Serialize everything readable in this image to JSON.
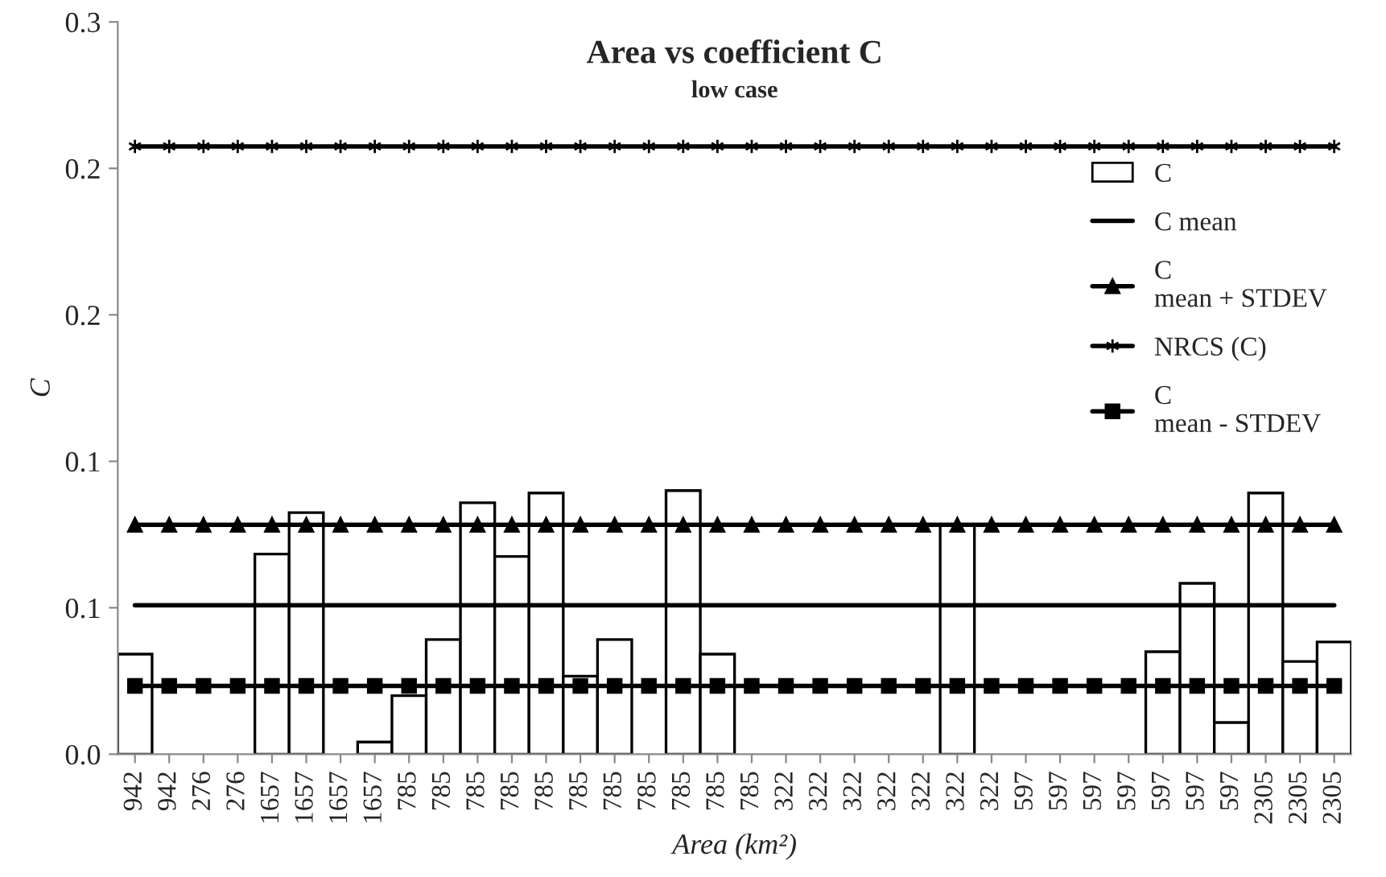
{
  "chart_data": {
    "type": "bar",
    "title": "Area vs coefficient C",
    "subtitle": "low case",
    "xlabel": "Area (km²)",
    "ylabel": "C",
    "categories": [
      "942",
      "942",
      "276",
      "276",
      "1657",
      "1657",
      "1657",
      "1657",
      "785",
      "785",
      "785",
      "785",
      "785",
      "785",
      "785",
      "785",
      "785",
      "785",
      "785",
      "322",
      "322",
      "322",
      "322",
      "322",
      "322",
      "322",
      "597",
      "597",
      "597",
      "597",
      "597",
      "597",
      "597",
      "2305",
      "2305",
      "2305"
    ],
    "series": [
      {
        "name": "C",
        "color": "#ffffff",
        "values": [
          0.041,
          null,
          null,
          null,
          0.082,
          0.099,
          null,
          0.005,
          0.024,
          0.047,
          0.103,
          0.081,
          0.107,
          0.032,
          0.047,
          null,
          0.108,
          0.041,
          null,
          null,
          null,
          null,
          null,
          null,
          0.094,
          null,
          null,
          null,
          null,
          null,
          0.042,
          0.07,
          0.013,
          0.107,
          0.038,
          0.046
        ]
      },
      {
        "name": "C mean",
        "type": "line",
        "color": "#000000",
        "marker": "none",
        "values": [
          0.061,
          0.061,
          0.061,
          0.061,
          0.061,
          0.061,
          0.061,
          0.061,
          0.061,
          0.061,
          0.061,
          0.061,
          0.061,
          0.061,
          0.061,
          0.061,
          0.061,
          0.061,
          0.061,
          0.061,
          0.061,
          0.061,
          0.061,
          0.061,
          0.061,
          0.061,
          0.061,
          0.061,
          0.061,
          0.061,
          0.061,
          0.061,
          0.061,
          0.061,
          0.061,
          0.061
        ]
      },
      {
        "name": "C\nmean + STDEV",
        "type": "line",
        "color": "#000000",
        "marker": "triangle",
        "values": [
          0.094,
          0.094,
          0.094,
          0.094,
          0.094,
          0.094,
          0.094,
          0.094,
          0.094,
          0.094,
          0.094,
          0.094,
          0.094,
          0.094,
          0.094,
          0.094,
          0.094,
          0.094,
          0.094,
          0.094,
          0.094,
          0.094,
          0.094,
          0.094,
          0.094,
          0.094,
          0.094,
          0.094,
          0.094,
          0.094,
          0.094,
          0.094,
          0.094,
          0.094,
          0.094,
          0.094
        ]
      },
      {
        "name": "NRCS (C)",
        "type": "line",
        "color": "#000000",
        "marker": "cross",
        "values": [
          0.249,
          0.249,
          0.249,
          0.249,
          0.249,
          0.249,
          0.249,
          0.249,
          0.249,
          0.249,
          0.249,
          0.249,
          0.249,
          0.249,
          0.249,
          0.249,
          0.249,
          0.249,
          0.249,
          0.249,
          0.249,
          0.249,
          0.249,
          0.249,
          0.249,
          0.249,
          0.249,
          0.249,
          0.249,
          0.249,
          0.249,
          0.249,
          0.249,
          0.249,
          0.249,
          0.249
        ]
      },
      {
        "name": "C\nmean - STDEV",
        "type": "line",
        "color": "#000000",
        "marker": "square",
        "values": [
          0.028,
          0.028,
          0.028,
          0.028,
          0.028,
          0.028,
          0.028,
          0.028,
          0.028,
          0.028,
          0.028,
          0.028,
          0.028,
          0.028,
          0.028,
          0.028,
          0.028,
          0.028,
          0.028,
          0.028,
          0.028,
          0.028,
          0.028,
          0.028,
          0.028,
          0.028,
          0.028,
          0.028,
          0.028,
          0.028,
          0.028,
          0.028,
          0.028,
          0.028,
          0.028,
          0.028
        ]
      }
    ],
    "ylim": [
      0,
      0.3
    ],
    "yticks": [
      {
        "value": 0,
        "label": "0.0"
      },
      {
        "value": 0.06,
        "label": "0.1"
      },
      {
        "value": 0.12,
        "label": "0.1"
      },
      {
        "value": 0.18,
        "label": "0.2"
      },
      {
        "value": 0.24,
        "label": "0.2"
      },
      0.3
    ],
    "grid": false,
    "legend": "right"
  }
}
